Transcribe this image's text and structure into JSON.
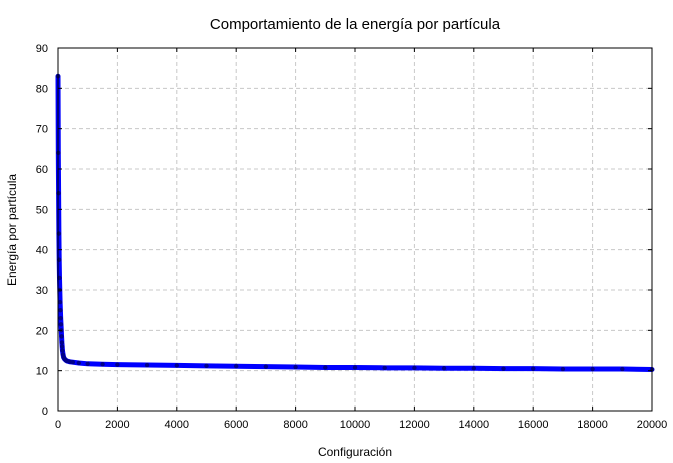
{
  "chart_data": {
    "type": "scatter",
    "title": "Comportamiento de la energía por partícula",
    "xlabel": "Configuración",
    "ylabel": "Energía por partícula",
    "xlim": [
      0,
      20000
    ],
    "ylim": [
      0,
      90
    ],
    "x_ticks": [
      0,
      2000,
      4000,
      6000,
      8000,
      10000,
      12000,
      14000,
      16000,
      18000,
      20000
    ],
    "y_ticks": [
      0,
      10,
      20,
      30,
      40,
      50,
      60,
      70,
      80,
      90
    ],
    "grid": true,
    "legend": "none",
    "series": [
      {
        "color": "#0000ff",
        "marker": "dot",
        "points": [
          [
            0,
            83
          ],
          [
            10,
            64
          ],
          [
            20,
            54
          ],
          [
            30,
            44
          ],
          [
            40,
            37.5
          ],
          [
            50,
            33
          ],
          [
            60,
            30
          ],
          [
            70,
            27
          ],
          [
            80,
            25
          ],
          [
            90,
            23
          ],
          [
            100,
            21.5
          ],
          [
            110,
            20
          ],
          [
            120,
            18.5
          ],
          [
            130,
            17
          ],
          [
            140,
            16
          ],
          [
            150,
            15
          ],
          [
            170,
            14
          ],
          [
            190,
            13.3
          ],
          [
            220,
            12.9
          ],
          [
            260,
            12.6
          ],
          [
            300,
            12.4
          ],
          [
            400,
            12.2
          ],
          [
            500,
            12.1
          ],
          [
            700,
            11.9
          ],
          [
            1000,
            11.7
          ],
          [
            1500,
            11.6
          ],
          [
            2000,
            11.5
          ],
          [
            3000,
            11.4
          ],
          [
            4000,
            11.3
          ],
          [
            5000,
            11.2
          ],
          [
            6000,
            11.1
          ],
          [
            7000,
            11.0
          ],
          [
            8000,
            10.9
          ],
          [
            9000,
            10.8
          ],
          [
            10000,
            10.8
          ],
          [
            11000,
            10.7
          ],
          [
            12000,
            10.7
          ],
          [
            13000,
            10.6
          ],
          [
            14000,
            10.6
          ],
          [
            15000,
            10.5
          ],
          [
            16000,
            10.5
          ],
          [
            17000,
            10.4
          ],
          [
            18000,
            10.4
          ],
          [
            19000,
            10.4
          ],
          [
            20000,
            10.3
          ]
        ]
      }
    ]
  }
}
